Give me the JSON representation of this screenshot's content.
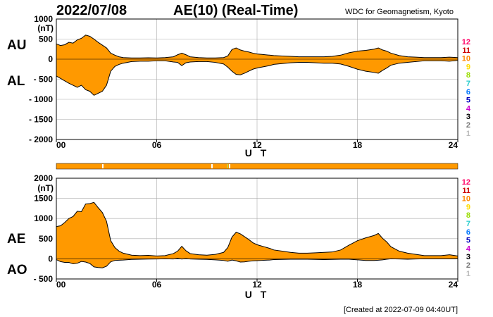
{
  "title": {
    "date": "2022/07/08",
    "name": "AE(10) (Real-Time)",
    "org": "WDC for Geomagnetism, Kyoto"
  },
  "footer": "[Created at 2022-07-09 04:40UT]",
  "legend": {
    "items": [
      {
        "label": "12",
        "color": "#ff0066"
      },
      {
        "label": "11",
        "color": "#cc0000"
      },
      {
        "label": "10",
        "color": "#ff8800"
      },
      {
        "label": "9",
        "color": "#ffdd00"
      },
      {
        "label": "8",
        "color": "#99dd00"
      },
      {
        "label": "7",
        "color": "#22cccc"
      },
      {
        "label": "6",
        "color": "#0077ff"
      },
      {
        "label": "5",
        "color": "#0000bb"
      },
      {
        "label": "4",
        "color": "#cc00cc"
      },
      {
        "label": "3",
        "color": "#000000"
      },
      {
        "label": "2",
        "color": "#777777"
      },
      {
        "label": "1",
        "color": "#bbbbbb"
      }
    ]
  },
  "status_bar": {
    "base_color": "#ff9900"
  },
  "colors": {
    "fill": "#ff9900",
    "line": "#000000",
    "grid": "#aaaaaa"
  },
  "chart_data": [
    {
      "type": "area",
      "x": [
        0,
        0.25,
        0.5,
        0.75,
        1,
        1.25,
        1.5,
        1.75,
        2,
        2.25,
        2.5,
        2.75,
        3,
        3.25,
        3.5,
        3.75,
        4,
        4.5,
        5,
        5.5,
        6,
        6.5,
        7,
        7.25,
        7.5,
        7.75,
        8,
        8.5,
        9,
        9.5,
        10,
        10.25,
        10.5,
        10.75,
        11,
        11.25,
        11.5,
        11.75,
        12,
        12.25,
        12.5,
        12.75,
        13,
        13.5,
        14,
        14.5,
        15,
        15.5,
        16,
        16.5,
        17,
        17.5,
        18,
        18.5,
        19,
        19.25,
        19.5,
        19.75,
        20,
        20.5,
        21,
        21.5,
        22,
        22.5,
        23,
        23.5,
        24
      ],
      "series": [
        {
          "name": "AU",
          "values": [
            380,
            340,
            360,
            420,
            400,
            480,
            520,
            600,
            570,
            500,
            420,
            350,
            280,
            150,
            100,
            60,
            40,
            30,
            30,
            35,
            30,
            40,
            60,
            110,
            150,
            110,
            60,
            40,
            30,
            30,
            40,
            80,
            240,
            280,
            230,
            200,
            180,
            150,
            130,
            120,
            110,
            100,
            90,
            80,
            70,
            60,
            60,
            60,
            60,
            70,
            100,
            160,
            200,
            220,
            250,
            280,
            230,
            200,
            150,
            90,
            60,
            50,
            40,
            40,
            40,
            50,
            40
          ]
        },
        {
          "name": "AL",
          "values": [
            -420,
            -480,
            -540,
            -600,
            -650,
            -700,
            -650,
            -760,
            -800,
            -900,
            -850,
            -800,
            -650,
            -300,
            -180,
            -130,
            -100,
            -60,
            -50,
            -50,
            -40,
            -40,
            -70,
            -80,
            -160,
            -90,
            -70,
            -60,
            -60,
            -80,
            -120,
            -200,
            -300,
            -380,
            -390,
            -350,
            -300,
            -250,
            -220,
            -200,
            -180,
            -160,
            -130,
            -110,
            -90,
            -80,
            -80,
            -90,
            -100,
            -100,
            -120,
            -180,
            -250,
            -300,
            -330,
            -350,
            -280,
            -220,
            -150,
            -100,
            -80,
            -60,
            -40,
            -40,
            -40,
            -50,
            -30
          ]
        }
      ],
      "ylabel": "(nT)",
      "xlabel": "U T",
      "ylim": [
        -2000,
        1000
      ],
      "xlim": [
        0,
        24
      ],
      "y_ticks": [
        1000,
        500,
        0,
        -500,
        -1000,
        -1500,
        -2000
      ],
      "y_tick_labels": [
        "1000",
        "500",
        "0",
        "- 500",
        "- 1000",
        "- 1500",
        "- 2000"
      ],
      "x_ticks": [
        0,
        6,
        12,
        18,
        24
      ],
      "x_tick_labels": [
        "00",
        "06",
        "12",
        "18",
        "24"
      ],
      "side_labels": [
        "AU",
        "AL"
      ],
      "grid": true
    },
    {
      "type": "area",
      "x": [
        0,
        0.25,
        0.5,
        0.75,
        1,
        1.25,
        1.5,
        1.75,
        2,
        2.25,
        2.5,
        2.75,
        3,
        3.25,
        3.5,
        3.75,
        4,
        4.5,
        5,
        5.5,
        6,
        6.5,
        7,
        7.25,
        7.5,
        7.75,
        8,
        8.5,
        9,
        9.5,
        10,
        10.25,
        10.5,
        10.75,
        11,
        11.25,
        11.5,
        11.75,
        12,
        12.25,
        12.5,
        12.75,
        13,
        13.5,
        14,
        14.5,
        15,
        15.5,
        16,
        16.5,
        17,
        17.5,
        18,
        18.5,
        19,
        19.25,
        19.5,
        19.75,
        20,
        20.5,
        21,
        21.5,
        22,
        22.5,
        23,
        23.5,
        24
      ],
      "series": [
        {
          "name": "AE",
          "values": [
            800,
            820,
            900,
            1000,
            1050,
            1180,
            1170,
            1360,
            1370,
            1400,
            1270,
            1150,
            930,
            450,
            280,
            190,
            140,
            90,
            80,
            85,
            70,
            80,
            130,
            190,
            310,
            200,
            130,
            100,
            90,
            110,
            160,
            280,
            540,
            660,
            620,
            550,
            480,
            400,
            350,
            320,
            290,
            260,
            220,
            190,
            160,
            140,
            140,
            150,
            160,
            170,
            220,
            340,
            450,
            520,
            580,
            630,
            510,
            420,
            300,
            190,
            140,
            110,
            80,
            80,
            80,
            100,
            70
          ]
        },
        {
          "name": "AO",
          "values": [
            -20,
            -70,
            -90,
            -90,
            -125,
            -110,
            -65,
            -80,
            -115,
            -200,
            -215,
            -225,
            -185,
            -75,
            -40,
            -35,
            -30,
            -15,
            -10,
            -7,
            -5,
            0,
            -5,
            15,
            -5,
            10,
            -5,
            -10,
            -15,
            -25,
            -40,
            -60,
            -30,
            -50,
            -80,
            -75,
            -60,
            -50,
            -45,
            -40,
            -35,
            -30,
            -20,
            -15,
            -10,
            -10,
            -10,
            -15,
            -20,
            -15,
            -10,
            -10,
            -25,
            -40,
            -40,
            -35,
            -25,
            -10,
            0,
            -5,
            -10,
            -5,
            0,
            0,
            0,
            0,
            5
          ]
        }
      ],
      "ylabel": "(nT)",
      "xlabel": "U T",
      "ylim": [
        -500,
        2000
      ],
      "xlim": [
        0,
        24
      ],
      "y_ticks": [
        2000,
        1500,
        1000,
        500,
        0,
        -500
      ],
      "y_tick_labels": [
        "2000",
        "1500",
        "1000",
        "500",
        "0",
        "- 500"
      ],
      "x_ticks": [
        0,
        6,
        12,
        18,
        24
      ],
      "x_tick_labels": [
        "00",
        "06",
        "12",
        "18",
        "24"
      ],
      "side_labels": [
        "AE",
        "AO"
      ],
      "grid": true
    }
  ]
}
